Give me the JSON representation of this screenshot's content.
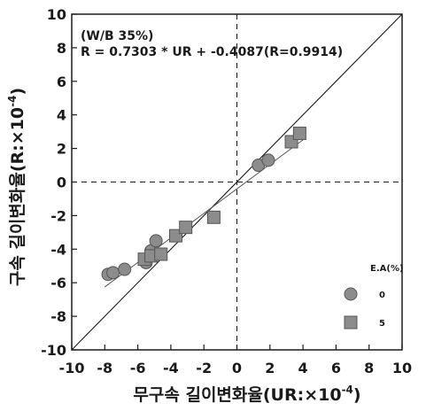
{
  "chart_data": {
    "type": "scatter",
    "xlabel": "무구속 길이변화율(UR:×10",
    "xlabel_exp": "-4",
    "xlabel_close": ")",
    "ylabel": "구속 길이변화율(R:×10",
    "ylabel_exp": "-4",
    "ylabel_close": ")",
    "xlim": [
      -10,
      10
    ],
    "ylim": [
      -10,
      10
    ],
    "xticks": [
      "-10",
      "-8",
      "-6",
      "-4",
      "-2",
      "0",
      "2",
      "4",
      "6",
      "8",
      "10"
    ],
    "yticks": [
      "-10",
      "-8",
      "-6",
      "-4",
      "-2",
      "0",
      "2",
      "4",
      "6",
      "8",
      "10"
    ],
    "grid": false,
    "annotations": [
      "(W/B 35%)",
      "R = 0.7303 * UR + -0.4087(R=0.9914)"
    ],
    "legend": {
      "title": "E.A(%)",
      "position": "bottom-right",
      "entries": [
        {
          "label": "0",
          "marker": "circle"
        },
        {
          "label": "5",
          "marker": "square"
        }
      ]
    },
    "reference_lines": [
      {
        "kind": "diagonal",
        "style": "solid",
        "from": [
          -10,
          -10
        ],
        "to": [
          10,
          10
        ]
      },
      {
        "kind": "vertical",
        "style": "dashed",
        "x": 0
      },
      {
        "kind": "horizontal",
        "style": "dashed",
        "y": 0
      },
      {
        "kind": "fit",
        "style": "solid",
        "slope": 0.7303,
        "intercept": -0.4087
      }
    ],
    "series": [
      {
        "marker": "circle",
        "x": [
          -7.8,
          -7.5,
          -6.8,
          -5.5,
          -5.2,
          -4.9,
          1.3,
          1.9
        ],
        "y": [
          -5.5,
          -5.4,
          -5.2,
          -4.8,
          -4.1,
          -3.5,
          1.0,
          1.3
        ]
      },
      {
        "marker": "square",
        "x": [
          -5.6,
          -5.2,
          -4.6,
          -3.7,
          -3.1,
          -1.4,
          3.3,
          3.8
        ],
        "y": [
          -4.6,
          -4.4,
          -4.3,
          -3.2,
          -2.7,
          -2.1,
          2.4,
          2.9
        ]
      }
    ],
    "colors": {
      "marker_fill": "#8c8c8c",
      "marker_stroke": "#555555",
      "line": "#1a1a1a",
      "fit_line": "#555555"
    }
  }
}
